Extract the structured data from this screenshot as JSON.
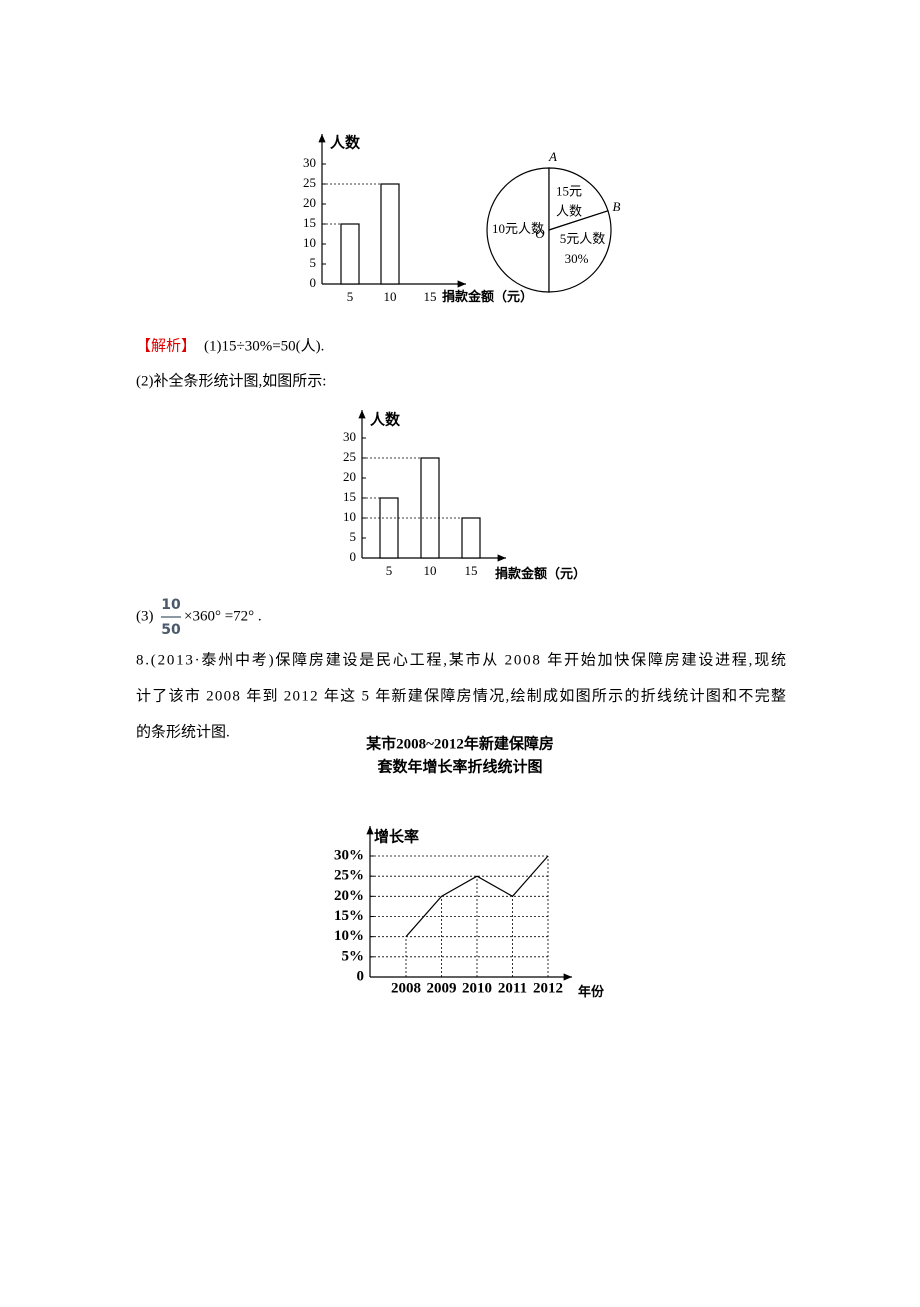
{
  "chart_data": [
    {
      "type": "bar",
      "ylabel": "人数",
      "xlabel": "捐款金额（元）",
      "categories": [
        "5",
        "10",
        "15"
      ],
      "values": [
        15,
        25,
        null
      ],
      "ylim": [
        0,
        30
      ],
      "yticks": [
        0,
        5,
        10,
        15,
        20,
        25,
        30
      ],
      "color": "#ffffff"
    },
    {
      "type": "pie",
      "labels": [
        [
          "10元人数"
        ],
        [
          "15元",
          "人数"
        ],
        [
          "5元人数"
        ]
      ],
      "values": [
        50,
        20,
        30
      ],
      "value_labels": [
        null,
        null,
        "30%"
      ],
      "points": [
        "A",
        "B",
        "O"
      ]
    },
    {
      "type": "bar",
      "ylabel": "人数",
      "xlabel": "捐款金额（元）",
      "categories": [
        "5",
        "10",
        "15"
      ],
      "values": [
        15,
        25,
        10
      ],
      "ylim": [
        0,
        30
      ],
      "yticks": [
        0,
        5,
        10,
        15,
        20,
        25,
        30
      ],
      "color": "#ffffff"
    },
    {
      "type": "line",
      "title": "某市2008~2012年新建保障房",
      "subtitle": "套数年增长率折线统计图",
      "ylabel": "增长率",
      "xlabel": "年份",
      "categories": [
        "2008",
        "2009",
        "2010",
        "2011",
        "2012"
      ],
      "values": [
        10,
        20,
        25,
        20,
        30
      ],
      "ylim": [
        0,
        30
      ],
      "yticks": [
        0,
        {
          "value": 5,
          "label": "5%"
        },
        {
          "value": 10,
          "label": "10%"
        },
        {
          "value": 15,
          "label": "15%"
        },
        {
          "value": 20,
          "label": "20%"
        },
        {
          "value": 25,
          "label": "25%"
        },
        {
          "value": 30,
          "label": "30%"
        }
      ],
      "grid": true,
      "color": "#000000"
    }
  ],
  "text": {
    "analysis_tag": "【解析】",
    "part1": "(1)15÷30%=50(人).",
    "part2": "(2)补全条形统计图,如图所示:",
    "part3_prefix": "(3)",
    "part3_numerator": "10",
    "part3_denominator": "50",
    "part3_rest": "×360° =72° .",
    "q8_lines": [
      "8.(2013·泰州中考)保障房建设是民心工程,某市从 2008 年开始加快保障房建设进程,现统",
      "计了该市 2008 年到 2012 年这 5 年新建保障房情况,绘制成如图所示的折线统计图和不完整",
      "的条形统计图."
    ]
  }
}
